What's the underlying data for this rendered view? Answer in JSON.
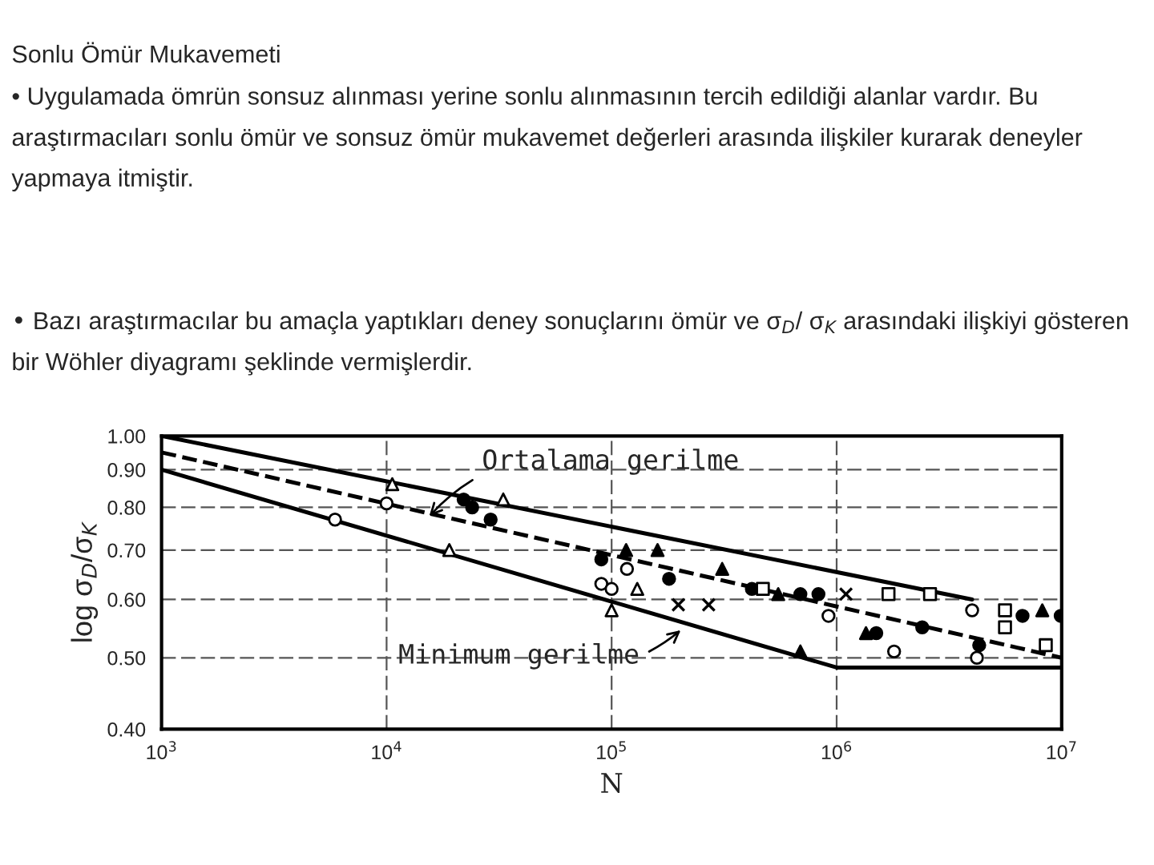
{
  "chart_data": {
    "type": "scatter",
    "title": "Sonlu Ömür Mukavemeti",
    "annotations": [
      "• Uygulamada ömrün sonsuz alınması yerine sonlu alınmasının tercih edildiği alanlar vardır. Bu araştırmacıları sonlu ömür ve sonsuz ömür mukavemet değerleri arasında ilişkiler kurarak deneyler yapmaya itmiştir.",
      "• Bazı araştırmacılar bu amaçla yaptıkları deney sonuçlarını ömür ve σ$_{D}$/ σ$_{K}$ arasındaki ilişkiyi gösteren bir Wöhler diyagramı şeklinde vermişlerdir.",
      {
        "text": "Ortalama gerilme",
        "x": 15000,
        "y": 0.77
      },
      {
        "text": "Minimum gerilme",
        "x": 210000,
        "y": 0.55
      }
    ],
    "xlabel": "N",
    "ylabel": "log σ$_{D}$/σ$_{K}$",
    "log": "xy",
    "grid": true,
    "legend": false,
    "xlim": [
      1000,
      10000000
    ],
    "ylim": [
      0.4,
      1.0
    ],
    "xticks": [
      {
        "value": 1000,
        "label": "10$^{3}$"
      },
      {
        "value": 10000,
        "label": "10$^{4}$"
      },
      {
        "value": 100000,
        "label": "10$^{5}$"
      },
      {
        "value": 1000000,
        "label": "10$^{6}$"
      },
      {
        "value": 10000000,
        "label": "10$^{7}$"
      }
    ],
    "yticks": [
      {
        "value": 0.4,
        "label": "0.40"
      },
      {
        "value": 0.5,
        "label": "0.50"
      },
      {
        "value": 0.6,
        "label": "0.60"
      },
      {
        "value": 0.7,
        "label": "0.70"
      },
      {
        "value": 0.8,
        "label": "0.80"
      },
      {
        "value": 0.9,
        "label": "0.90"
      },
      {
        "value": 1.0,
        "label": "1.00"
      }
    ],
    "series": [
      {
        "type": "line",
        "color": "#000000",
        "line_style": "solid",
        "marker": "none",
        "x": [
          1000,
          4000000
        ],
        "values": [
          1.0,
          0.6
        ]
      },
      {
        "type": "line",
        "color": "#000000",
        "line_style": "dashed",
        "marker": "none",
        "x": [
          1000,
          10000000
        ],
        "values": [
          0.95,
          0.5
        ]
      },
      {
        "type": "line",
        "color": "#000000",
        "line_style": "solid",
        "marker": "none",
        "x": [
          1000,
          1000000,
          10000000
        ],
        "values": [
          0.9,
          0.485,
          0.485
        ]
      },
      {
        "color": "#000000",
        "marker": "circle",
        "x": [
          22000,
          24000,
          29000,
          90000,
          180000,
          420000,
          690000,
          830000,
          1500000,
          2400000,
          4300000,
          6700000,
          9900000
        ],
        "values": [
          0.82,
          0.8,
          0.77,
          0.68,
          0.64,
          0.62,
          0.61,
          0.61,
          0.54,
          0.55,
          0.52,
          0.57,
          0.57
        ]
      },
      {
        "color": "#000000",
        "marker": "triangle",
        "x": [
          116000,
          160000,
          310000,
          550000,
          690000,
          1350000,
          8200000
        ],
        "values": [
          0.7,
          0.7,
          0.66,
          0.61,
          0.51,
          0.54,
          0.58
        ]
      },
      {
        "color": "#ffffff",
        "marker": "triangle",
        "x": [
          10600,
          33000,
          19000,
          100000,
          130000
        ],
        "values": [
          0.86,
          0.82,
          0.7,
          0.58,
          0.62
        ]
      },
      {
        "color": "#ffffff",
        "marker": "circle",
        "x": [
          5900,
          10000,
          90000,
          100000,
          117000,
          920000,
          1800000,
          4200000,
          4000000
        ],
        "values": [
          0.77,
          0.81,
          0.63,
          0.62,
          0.66,
          0.57,
          0.51,
          0.5,
          0.58
        ]
      },
      {
        "color": "#ffffff",
        "marker": "square",
        "x": [
          470000,
          1700000,
          2600000,
          5600000,
          5600000,
          8500000
        ],
        "values": [
          0.62,
          0.61,
          0.61,
          0.58,
          0.55,
          0.52
        ]
      },
      {
        "color": "#000000",
        "marker": "cross",
        "x": [
          198000,
          270000,
          1100000
        ],
        "values": [
          0.59,
          0.59,
          0.61
        ]
      }
    ]
  }
}
